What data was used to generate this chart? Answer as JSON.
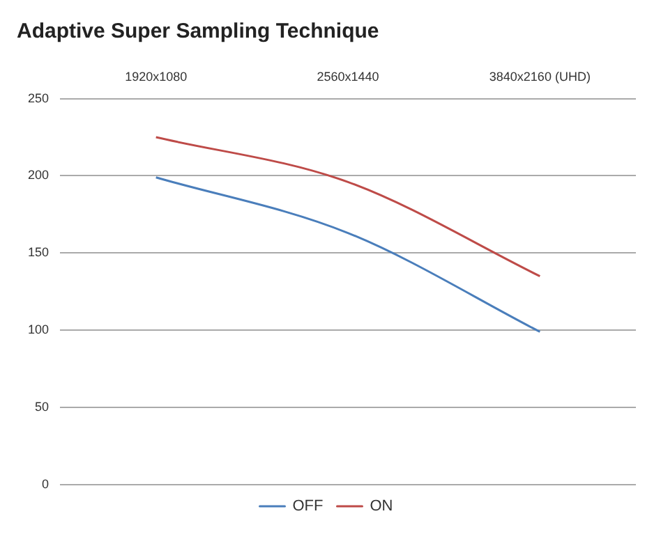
{
  "chart_data": {
    "type": "line",
    "title": "Adaptive Super Sampling Technique",
    "categories": [
      "1920x1080",
      "2560x1440",
      "3840x2160 (UHD)"
    ],
    "series": [
      {
        "name": "OFF",
        "color": "#4a7ebb",
        "values": [
          199,
          163,
          99
        ]
      },
      {
        "name": "ON",
        "color": "#be4b48",
        "values": [
          225,
          196,
          135
        ]
      }
    ],
    "ylim": [
      0,
      250
    ],
    "yticks": [
      0,
      50,
      100,
      150,
      200,
      250
    ],
    "grid": "y",
    "legend": "bottom",
    "marker": "none",
    "line_style": "solid"
  }
}
